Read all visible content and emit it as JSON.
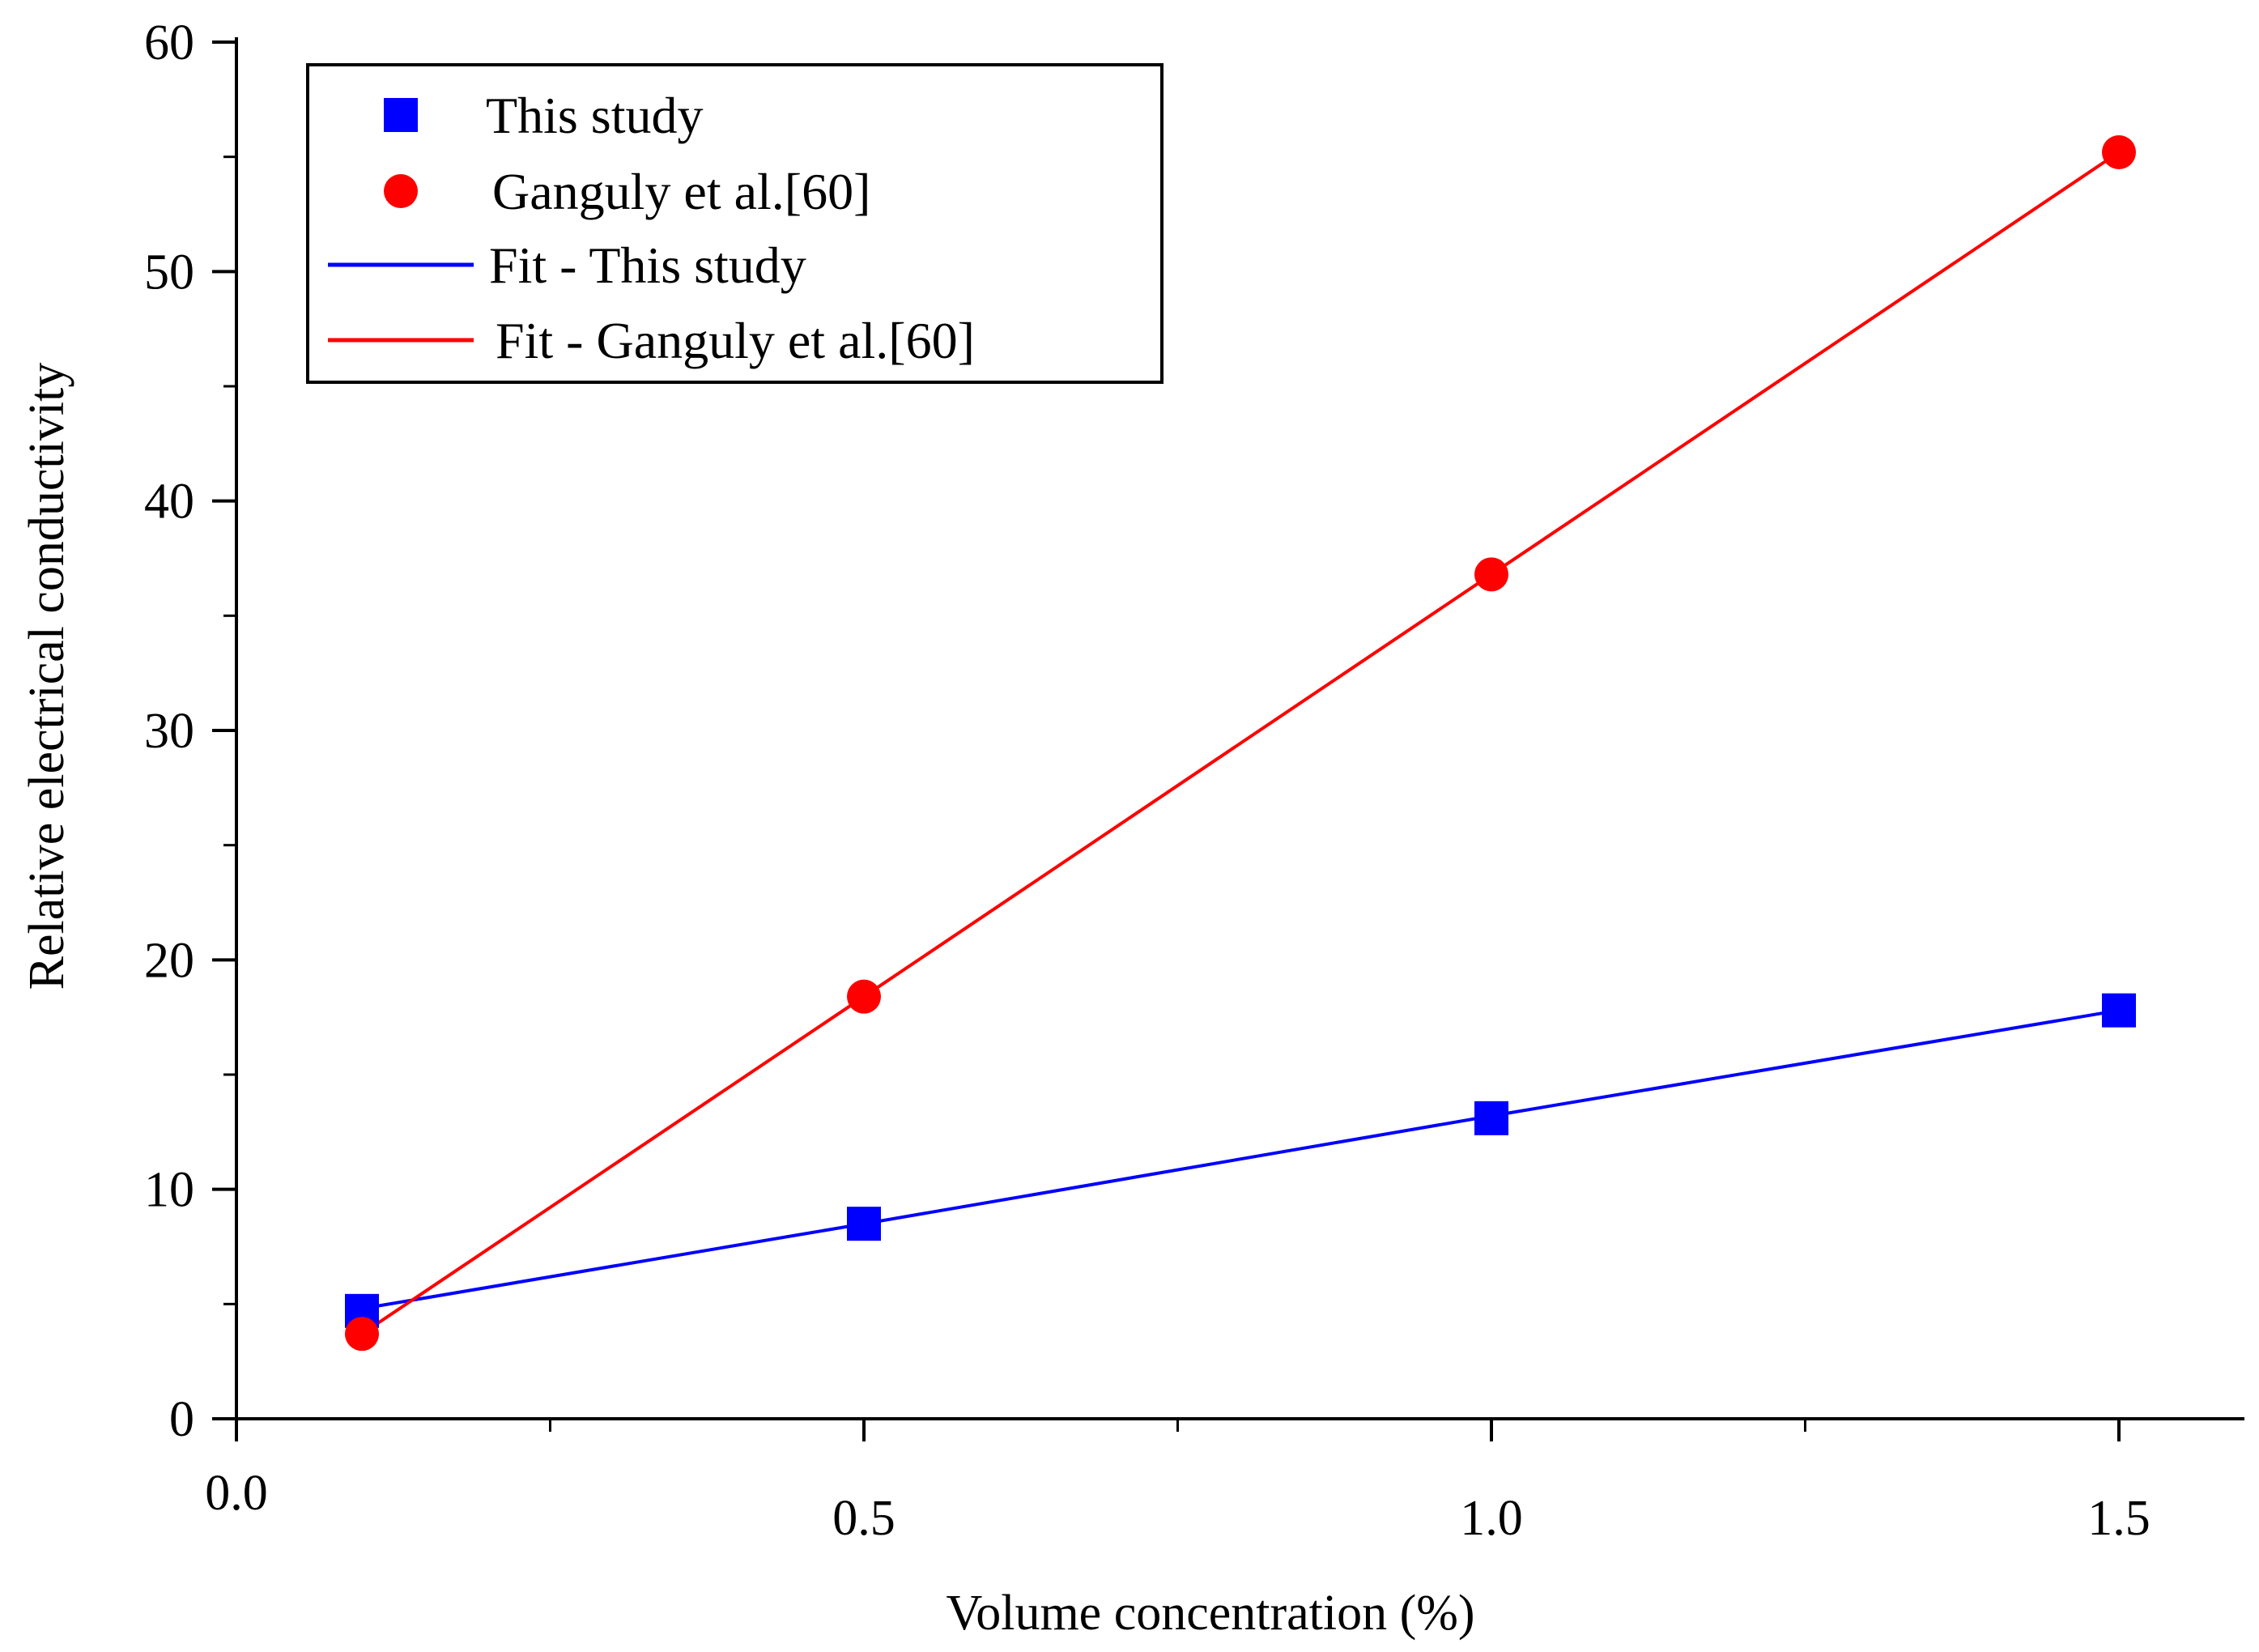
{
  "chart_data": {
    "type": "scatter",
    "title": "",
    "xlabel": "Volume concentration (%)",
    "ylabel": "Relative electrical conductivity",
    "xlim": [
      0.0,
      1.6
    ],
    "ylim": [
      0,
      60
    ],
    "x_ticks": [
      0.0,
      0.5,
      1.0,
      1.5
    ],
    "x_tick_labels": [
      "0.0",
      "0.5",
      "1.0",
      "1.5"
    ],
    "x_minor_ticks": [
      0.25,
      0.75,
      1.25
    ],
    "y_ticks": [
      0,
      10,
      20,
      30,
      40,
      50,
      60
    ],
    "y_tick_labels": [
      "0",
      "10",
      "20",
      "30",
      "40",
      "50",
      "60"
    ],
    "y_minor_ticks": [
      5,
      15,
      25,
      35,
      45,
      55
    ],
    "grid": false,
    "legend_position": "top-left",
    "series": [
      {
        "name": "This study",
        "kind": "markers",
        "marker": "square",
        "color": "#0000ff",
        "x": [
          0.1,
          0.5,
          1.0,
          1.5
        ],
        "y": [
          4.7,
          8.5,
          13.1,
          17.8
        ]
      },
      {
        "name": "Ganguly et al.[60]",
        "kind": "markers",
        "marker": "circle",
        "color": "#ff0000",
        "x": [
          0.1,
          0.5,
          1.0,
          1.5
        ],
        "y": [
          3.7,
          18.4,
          36.8,
          55.2
        ]
      },
      {
        "name": "Fit - This study",
        "kind": "line",
        "color": "#0000ff",
        "x": [
          0.1,
          0.5,
          1.0,
          1.5
        ],
        "y": [
          4.8,
          8.5,
          13.2,
          17.8
        ]
      },
      {
        "name": "Fit - Ganguly et al.[60]",
        "kind": "line",
        "color": "#ff0000",
        "x": [
          0.1,
          0.5,
          1.0,
          1.5
        ],
        "y": [
          3.7,
          18.4,
          36.8,
          55.2
        ]
      }
    ]
  }
}
